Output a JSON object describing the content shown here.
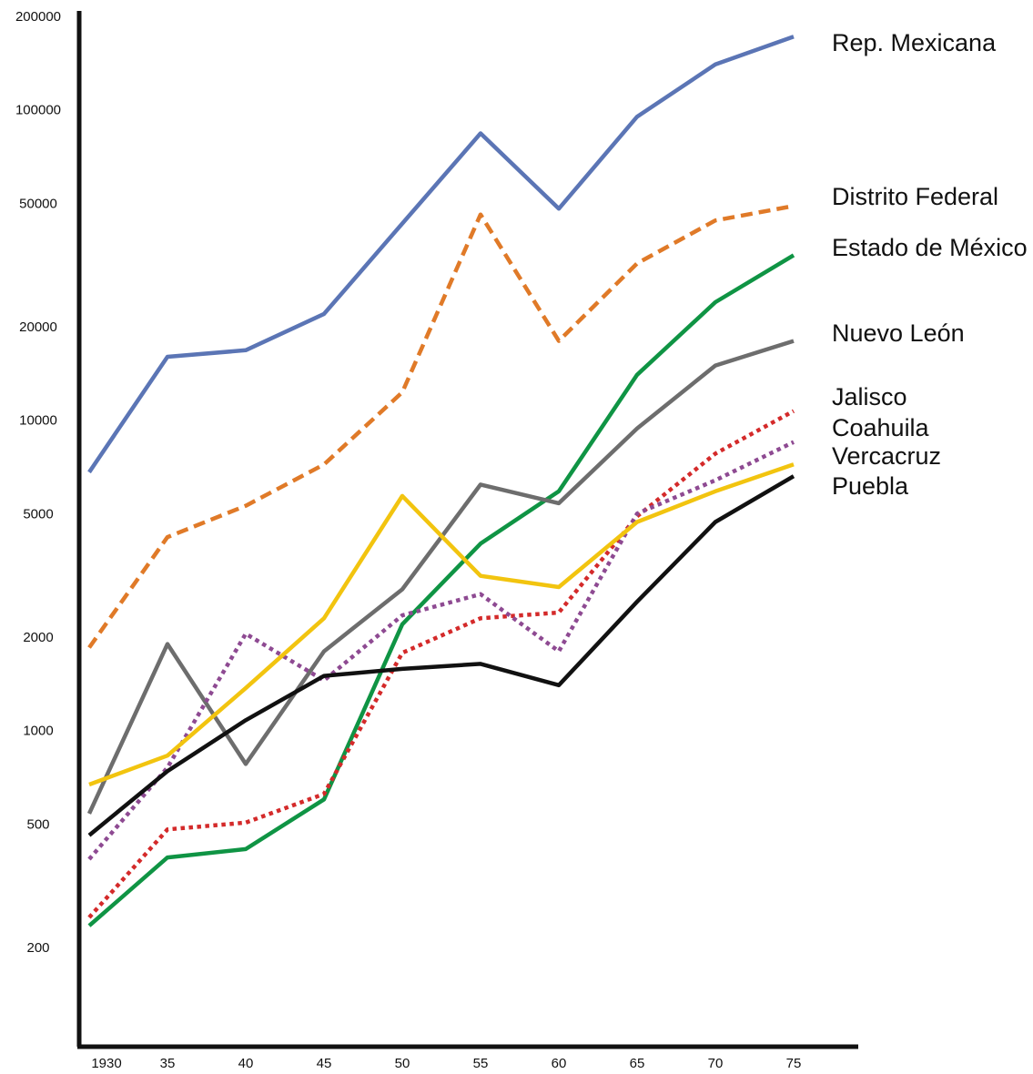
{
  "chart_data": {
    "type": "line",
    "title": "",
    "xlabel": "",
    "ylabel": "",
    "yscale": "log",
    "ylim": [
      100,
      200000
    ],
    "grid": false,
    "legend": "right, series labels at line ends",
    "x": [
      1930,
      1935,
      1940,
      1945,
      1950,
      1955,
      1960,
      1965,
      1970,
      1975
    ],
    "x_tick_labels": [
      "1930",
      "35",
      "40",
      "45",
      "50",
      "55",
      "60",
      "65",
      "70",
      "75"
    ],
    "y_ticks": [
      200,
      500,
      1000,
      2000,
      5000,
      10000,
      20000,
      50000,
      100000,
      200000
    ],
    "y_tick_labels": [
      "200",
      "500",
      "1000",
      "2000",
      "5000",
      "10000",
      "20000",
      "50000",
      "100000",
      "200000"
    ],
    "series": [
      {
        "name": "Rep. Mexicana",
        "color": "#5b75b5",
        "dash": "solid",
        "values": [
          6800,
          16000,
          16800,
          22000,
          43000,
          84000,
          48000,
          95000,
          140000,
          172000
        ]
      },
      {
        "name": "Distrito Federal",
        "color": "#e07a28",
        "dash": "dashed",
        "values": [
          1850,
          4200,
          5300,
          7200,
          12300,
          46000,
          18000,
          32000,
          44000,
          49000
        ]
      },
      {
        "name": "Estado de México",
        "color": "#0f9444",
        "dash": "solid",
        "values": [
          235,
          390,
          415,
          600,
          2200,
          4000,
          5900,
          14000,
          24000,
          34000
        ]
      },
      {
        "name": "Nuevo León",
        "color": "#6d6d6d",
        "dash": "solid",
        "values": [
          540,
          1900,
          780,
          1800,
          2850,
          6200,
          5400,
          9400,
          15000,
          18000
        ]
      },
      {
        "name": "Jalisco",
        "color": "#d42a2a",
        "dash": "dotted",
        "values": [
          250,
          480,
          505,
          625,
          1780,
          2300,
          2400,
          4900,
          7800,
          10700
        ]
      },
      {
        "name": "Vercacruz",
        "color": "#8e4a92",
        "dash": "dotted",
        "values": [
          385,
          760,
          2050,
          1450,
          2350,
          2750,
          1800,
          5000,
          6400,
          8500
        ]
      },
      {
        "name": "Coahuila",
        "color": "#f2c40f",
        "dash": "solid",
        "values": [
          670,
          830,
          1370,
          2300,
          5700,
          3150,
          2900,
          4700,
          5900,
          7200
        ]
      },
      {
        "name": "Puebla",
        "color": "#111111",
        "dash": "solid",
        "values": [
          460,
          740,
          1080,
          1500,
          1580,
          1640,
          1400,
          2600,
          4700,
          6600
        ]
      }
    ],
    "labels": [
      "Rep. Mexicana",
      "Distrito Federal",
      "Estado de México",
      "Nuevo León",
      "Jalisco",
      "Coahuila",
      "Vercacruz",
      "Puebla"
    ]
  }
}
